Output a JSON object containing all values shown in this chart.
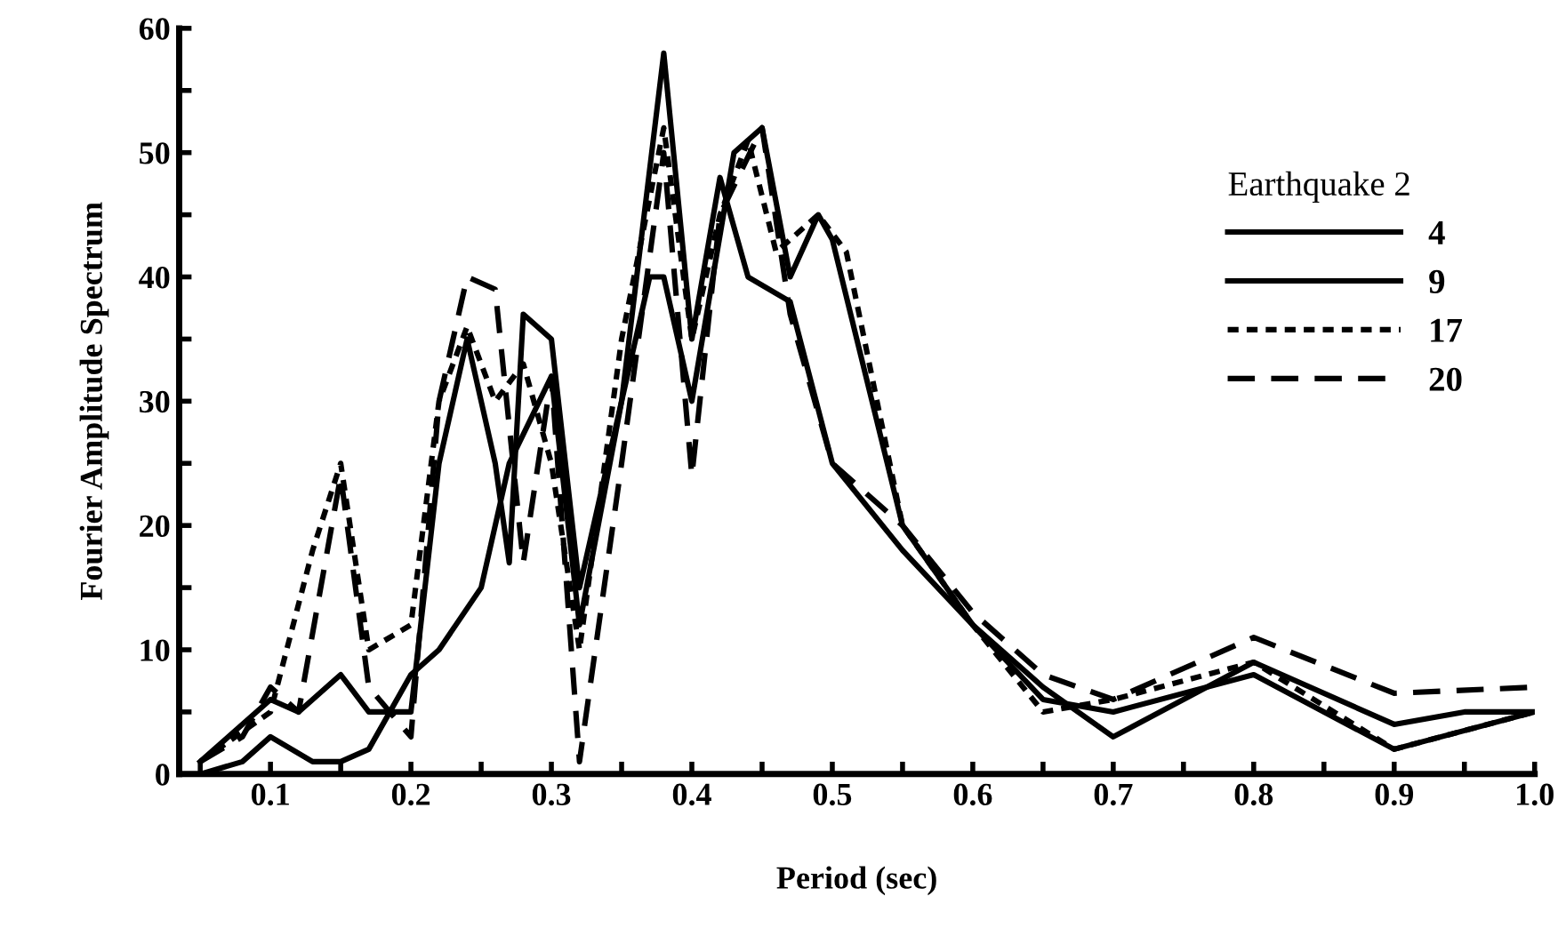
{
  "chart_data": {
    "type": "line",
    "xlabel": "Period (sec)",
    "ylabel": "Fourier Amplitude Spectrum",
    "legend_title": "Earthquake 2",
    "legend": "top right",
    "grid": false,
    "marker": "none",
    "xlim": [
      0.035,
      1.0
    ],
    "xticks": [
      {
        "value": 0.05,
        "label": null
      },
      0.1,
      {
        "value": 0.15,
        "label": null
      },
      0.2,
      {
        "value": 0.25,
        "label": null
      },
      0.3,
      {
        "value": 0.35,
        "label": null
      },
      0.4,
      {
        "value": 0.45,
        "label": null
      },
      0.5,
      {
        "value": 0.55,
        "label": null
      },
      0.6,
      {
        "value": 0.65,
        "label": null
      },
      0.7,
      {
        "value": 0.75,
        "label": null
      },
      0.8,
      {
        "value": 0.85,
        "label": null
      },
      0.9,
      {
        "value": 0.95,
        "label": null
      },
      {
        "value": 1.0,
        "label": "1.0"
      }
    ],
    "ylim": [
      0,
      60
    ],
    "yticks": [
      0,
      {
        "value": 5,
        "label": null
      },
      10,
      {
        "value": 15,
        "label": null
      },
      20,
      {
        "value": 25,
        "label": null
      },
      30,
      {
        "value": 35,
        "label": null
      },
      40,
      {
        "value": 45,
        "label": null
      },
      50,
      {
        "value": 55,
        "label": null
      },
      60
    ],
    "series": [
      {
        "name": "4",
        "color": "#000000",
        "line_style": "solid",
        "x": [
          0.05,
          0.08,
          0.1,
          0.13,
          0.15,
          0.17,
          0.2,
          0.22,
          0.25,
          0.27,
          0.3,
          0.32,
          0.35,
          0.38,
          0.4,
          0.42,
          0.44,
          0.47,
          0.5,
          0.55,
          0.6,
          0.65,
          0.7,
          0.8,
          0.9,
          0.95,
          1.0
        ],
        "values": [
          0,
          1,
          3,
          1,
          1,
          2,
          8,
          10,
          15,
          25,
          32,
          12,
          30,
          58,
          35,
          48,
          40,
          38,
          25,
          18,
          12,
          7,
          3,
          9,
          4,
          5,
          5
        ]
      },
      {
        "name": "9",
        "color": "#000000",
        "line_style": "solid",
        "x": [
          0.05,
          0.1,
          0.12,
          0.15,
          0.17,
          0.2,
          0.22,
          0.24,
          0.26,
          0.27,
          0.28,
          0.3,
          0.32,
          0.35,
          0.37,
          0.38,
          0.4,
          0.43,
          0.45,
          0.47,
          0.49,
          0.5,
          0.55,
          0.6,
          0.65,
          0.7,
          0.8,
          0.9,
          1.0
        ],
        "values": [
          1,
          6,
          5,
          8,
          5,
          5,
          25,
          35,
          25,
          17,
          37,
          35,
          15,
          30,
          40,
          40,
          30,
          50,
          52,
          40,
          45,
          43,
          20,
          12,
          6,
          5,
          8,
          2,
          5
        ]
      },
      {
        "name": "17",
        "color": "#000000",
        "line_style": "dotted",
        "x": [
          0.05,
          0.1,
          0.13,
          0.15,
          0.17,
          0.2,
          0.22,
          0.24,
          0.26,
          0.28,
          0.3,
          0.32,
          0.35,
          0.38,
          0.4,
          0.42,
          0.44,
          0.46,
          0.49,
          0.51,
          0.55,
          0.6,
          0.65,
          0.7,
          0.8,
          0.9,
          1.0
        ],
        "values": [
          1,
          5,
          18,
          25,
          10,
          12,
          30,
          36,
          30,
          33,
          25,
          10,
          35,
          52,
          35,
          45,
          51,
          42,
          45,
          42,
          20,
          12,
          5,
          6,
          9,
          2,
          5
        ]
      },
      {
        "name": "20",
        "color": "#000000",
        "line_style": "dashed",
        "x": [
          0.05,
          0.08,
          0.1,
          0.12,
          0.15,
          0.17,
          0.2,
          0.22,
          0.24,
          0.26,
          0.28,
          0.3,
          0.32,
          0.35,
          0.38,
          0.4,
          0.42,
          0.45,
          0.47,
          0.5,
          0.55,
          0.6,
          0.65,
          0.7,
          0.8,
          0.9,
          1.0
        ],
        "values": [
          1,
          3,
          7,
          5,
          24,
          7,
          3,
          30,
          40,
          39,
          17,
          32,
          1,
          25,
          50,
          24,
          45,
          52,
          37,
          25,
          20,
          13,
          8,
          6,
          11,
          6.5,
          7
        ]
      }
    ]
  }
}
